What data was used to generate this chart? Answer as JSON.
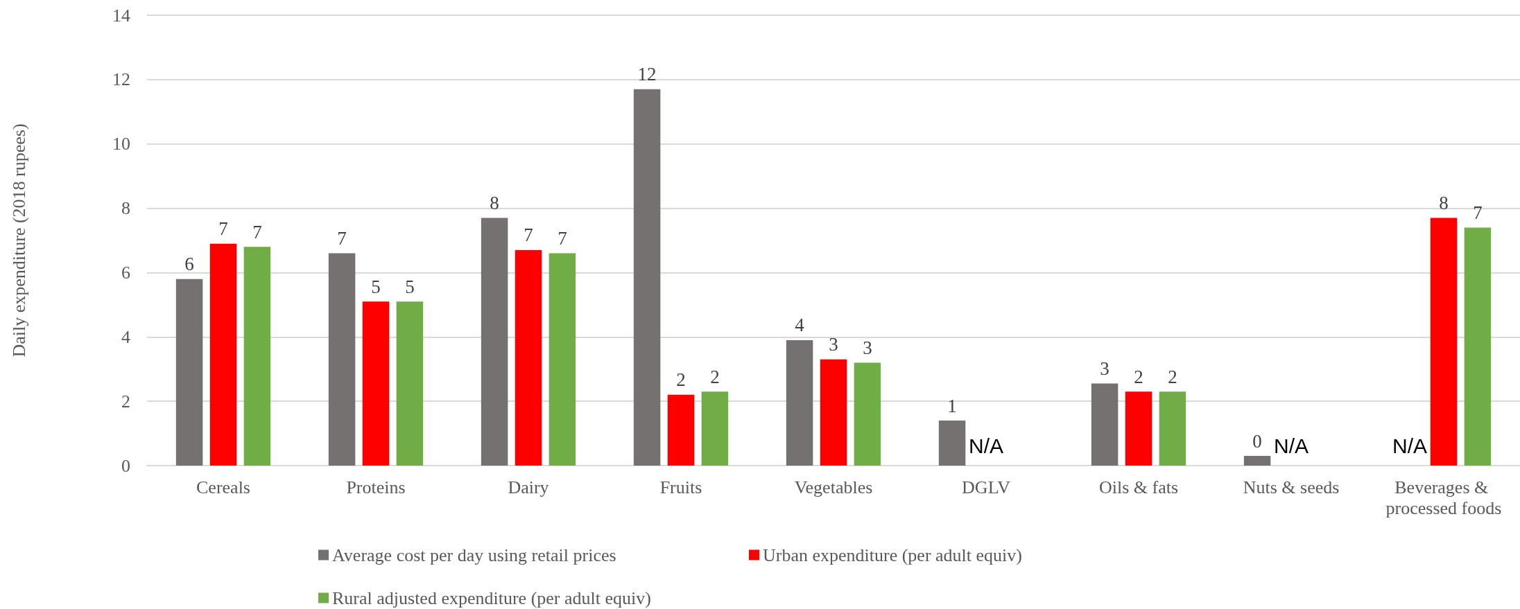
{
  "chart_data": {
    "type": "bar",
    "ylabel": "Daily expenditure (2018 rupees)",
    "categories": [
      "Cereals",
      "Proteins",
      "Dairy",
      "Fruits",
      "Vegetables",
      "DGLV",
      "Oils & fats",
      "Nuts & seeds",
      "Beverages & processed foods"
    ],
    "series": [
      {
        "name": "Average cost per day using retail prices",
        "color": "#767171",
        "values": [
          5.8,
          6.6,
          7.7,
          11.7,
          3.9,
          1.4,
          2.55,
          0.3,
          null
        ],
        "value_labels": [
          "6",
          "7",
          "8",
          "12",
          "4",
          "1",
          "3",
          "0",
          "N/A"
        ]
      },
      {
        "name": "Urban expenditure (per adult equiv)",
        "color": "#ff0000",
        "values": [
          6.9,
          5.1,
          6.7,
          2.2,
          3.3,
          null,
          2.3,
          null,
          7.7
        ],
        "value_labels": [
          "7",
          "5",
          "7",
          "2",
          "3",
          "N/A",
          "2",
          "N/A",
          "8"
        ]
      },
      {
        "name": "Rural adjusted expenditure (per adult equiv)",
        "color": "#70ad47",
        "values": [
          6.8,
          5.1,
          6.6,
          2.3,
          3.2,
          null,
          2.3,
          null,
          7.4
        ],
        "value_labels": [
          "7",
          "5",
          "7",
          "2",
          "3",
          null,
          "2",
          null,
          "7"
        ]
      }
    ],
    "ylim": [
      0,
      14
    ],
    "yticks": [
      0,
      2,
      4,
      6,
      8,
      10,
      12,
      14
    ],
    "grid": "y",
    "legend": "bottom"
  }
}
